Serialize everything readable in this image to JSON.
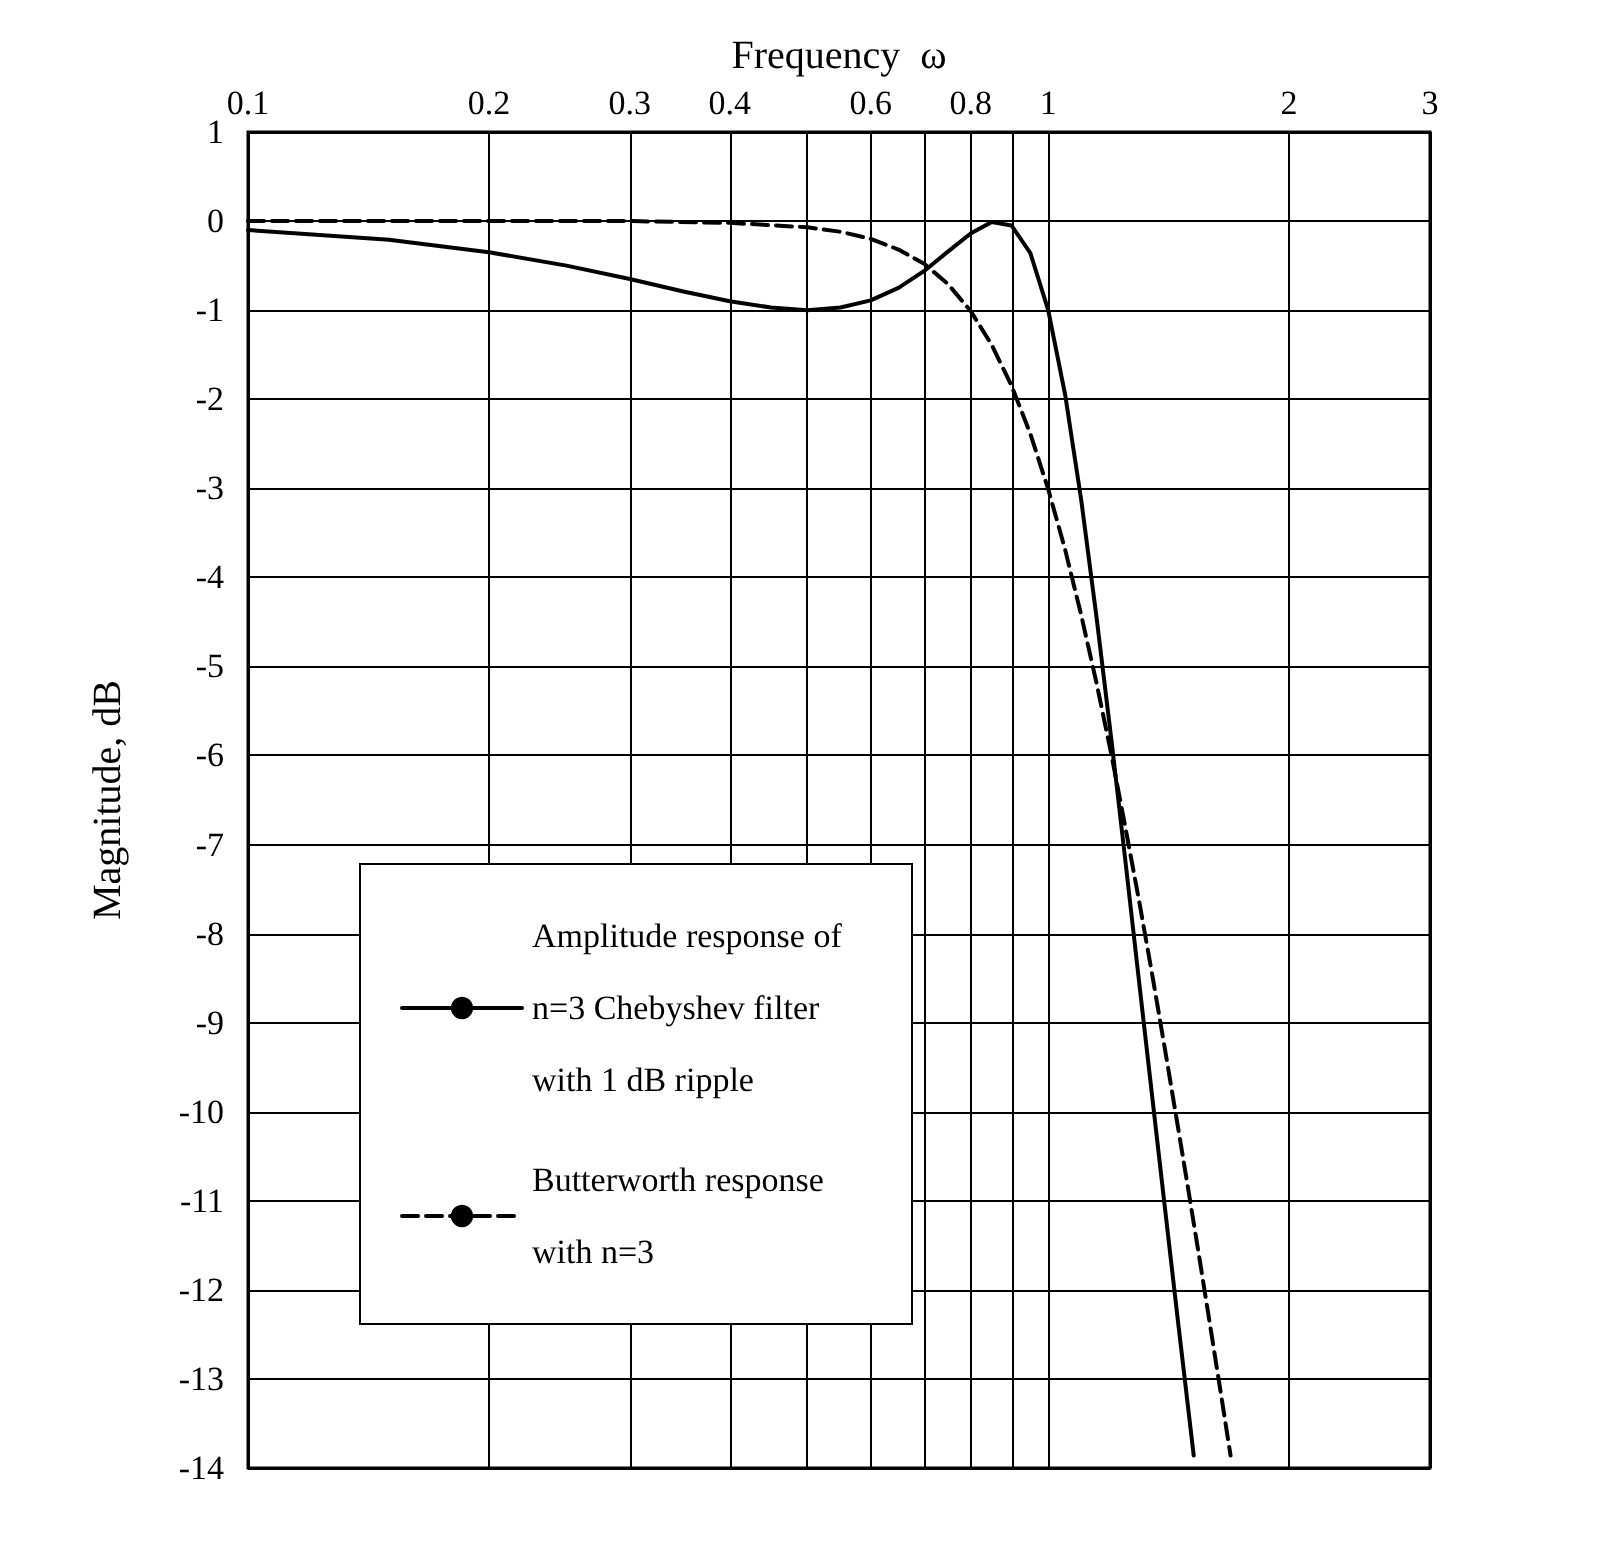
{
  "chart_data": {
    "type": "line",
    "xlabel": "Frequency  ω",
    "ylabel": "Magnitude, dB",
    "log": "x",
    "grid": true,
    "legend": "bottom left",
    "marker": "none",
    "xlim": [
      0.1,
      3
    ],
    "xticks": [
      0.1,
      0.2,
      0.3,
      0.4,
      {
        "value": 0.5,
        "label": null
      },
      0.6,
      {
        "value": 0.7,
        "label": null
      },
      0.8,
      {
        "value": 0.9,
        "label": null
      },
      1,
      2,
      3
    ],
    "ylim": [
      -14,
      1
    ],
    "yticks": [
      -14,
      -13,
      -12,
      -11,
      -10,
      -9,
      -8,
      -7,
      -6,
      -5,
      -4,
      -3,
      -2,
      -1,
      0,
      1
    ],
    "series": [
      {
        "name": "Amplitude response of n=3 Chebyshev filter with 1 dB ripple",
        "color": "#000000",
        "line_style": "solid",
        "x": [
          0.1,
          0.15,
          0.2,
          0.25,
          0.3,
          0.35,
          0.4,
          0.45,
          0.5,
          0.55,
          0.6,
          0.65,
          0.7,
          0.75,
          0.8,
          0.85,
          0.9,
          0.95,
          1,
          1.05,
          1.1,
          1.15,
          1.2,
          1.25,
          1.3,
          1.35,
          1.4,
          1.45,
          1.5,
          1.52
        ],
        "values": [
          -0.1,
          -0.21,
          -0.35,
          -0.5,
          -0.65,
          -0.79,
          -0.9,
          -0.97,
          -1,
          -0.97,
          -0.89,
          -0.75,
          -0.56,
          -0.34,
          -0.14,
          -0.01,
          -0.05,
          -0.36,
          -1,
          -1.95,
          -3.14,
          -4.47,
          -5.84,
          -7.22,
          -8.57,
          -9.86,
          -11.1,
          -12.29,
          -13.42,
          -13.86
        ]
      },
      {
        "name": "Butterworth response with n=3",
        "color": "#000000",
        "line_style": "dashed",
        "x": [
          0.1,
          0.2,
          0.3,
          0.4,
          0.5,
          0.55,
          0.6,
          0.65,
          0.7,
          0.75,
          0.8,
          0.85,
          0.9,
          0.95,
          1,
          1.05,
          1.1,
          1.15,
          1.2,
          1.25,
          1.3,
          1.35,
          1.4,
          1.45,
          1.5,
          1.55,
          1.6,
          1.65,
          1.69
        ],
        "values": [
          0,
          0,
          0,
          -0.02,
          -0.07,
          -0.12,
          -0.2,
          -0.32,
          -0.48,
          -0.71,
          -1.01,
          -1.39,
          -1.85,
          -2.39,
          -3.01,
          -3.69,
          -4.43,
          -5.2,
          -6,
          -6.83,
          -7.65,
          -8.48,
          -9.31,
          -10.13,
          -10.93,
          -11.72,
          -12.5,
          -13.26,
          -13.86
        ]
      }
    ]
  }
}
